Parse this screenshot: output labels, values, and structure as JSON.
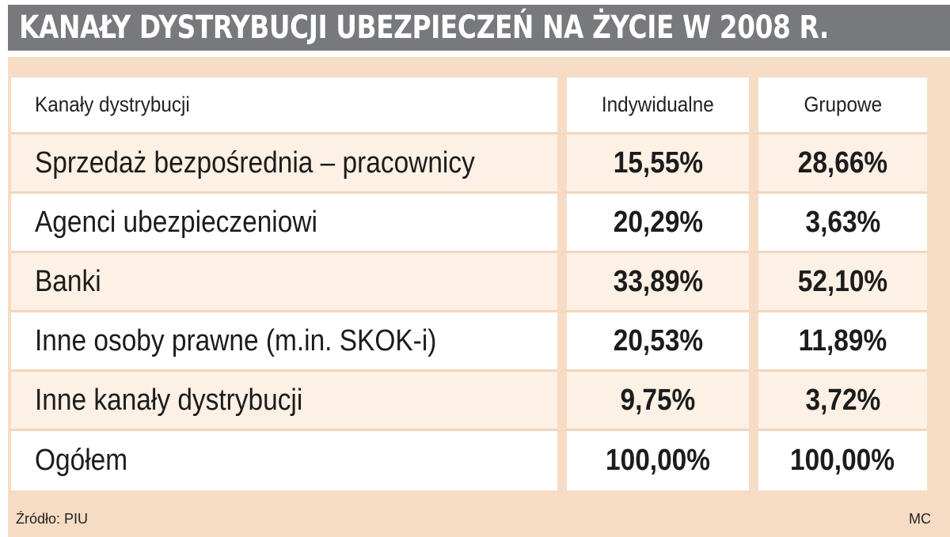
{
  "title": "KANAŁY DYSTRYBUCJI UBEZPIECZEŃ NA ŻYCIE W 2008 R.",
  "colors": {
    "title_bar": "#77797c",
    "panel": "#f6dcc4",
    "row_white": "#ffffff",
    "row_tint": "#fdf0e4"
  },
  "chart_data": {
    "type": "table",
    "title": "KANAŁY DYSTRYBUCJI UBEZPIECZEŃ NA ŻYCIE W 2008 R.",
    "headers": [
      "Kanały dystrybucji",
      "Indywidualne",
      "Grupowe"
    ],
    "rows": [
      {
        "label": "Sprzedaż bezpośrednia – pracownicy",
        "indywidualne": "15,55%",
        "grupowe": "28,66%"
      },
      {
        "label": "Agenci ubezpieczeniowi",
        "indywidualne": "20,29%",
        "grupowe": "3,63%"
      },
      {
        "label": "Banki",
        "indywidualne": "33,89%",
        "grupowe": "52,10%"
      },
      {
        "label": "Inne osoby prawne (m.in. SKOK-i)",
        "indywidualne": "20,53%",
        "grupowe": "11,89%"
      },
      {
        "label": "Inne kanały dystrybucji",
        "indywidualne": "9,75%",
        "grupowe": "3,72%"
      },
      {
        "label": "Ogółem",
        "indywidualne": "100,00%",
        "grupowe": "100,00%"
      }
    ]
  },
  "footer": {
    "source": "Źródło: PIU",
    "credit": "MC"
  }
}
